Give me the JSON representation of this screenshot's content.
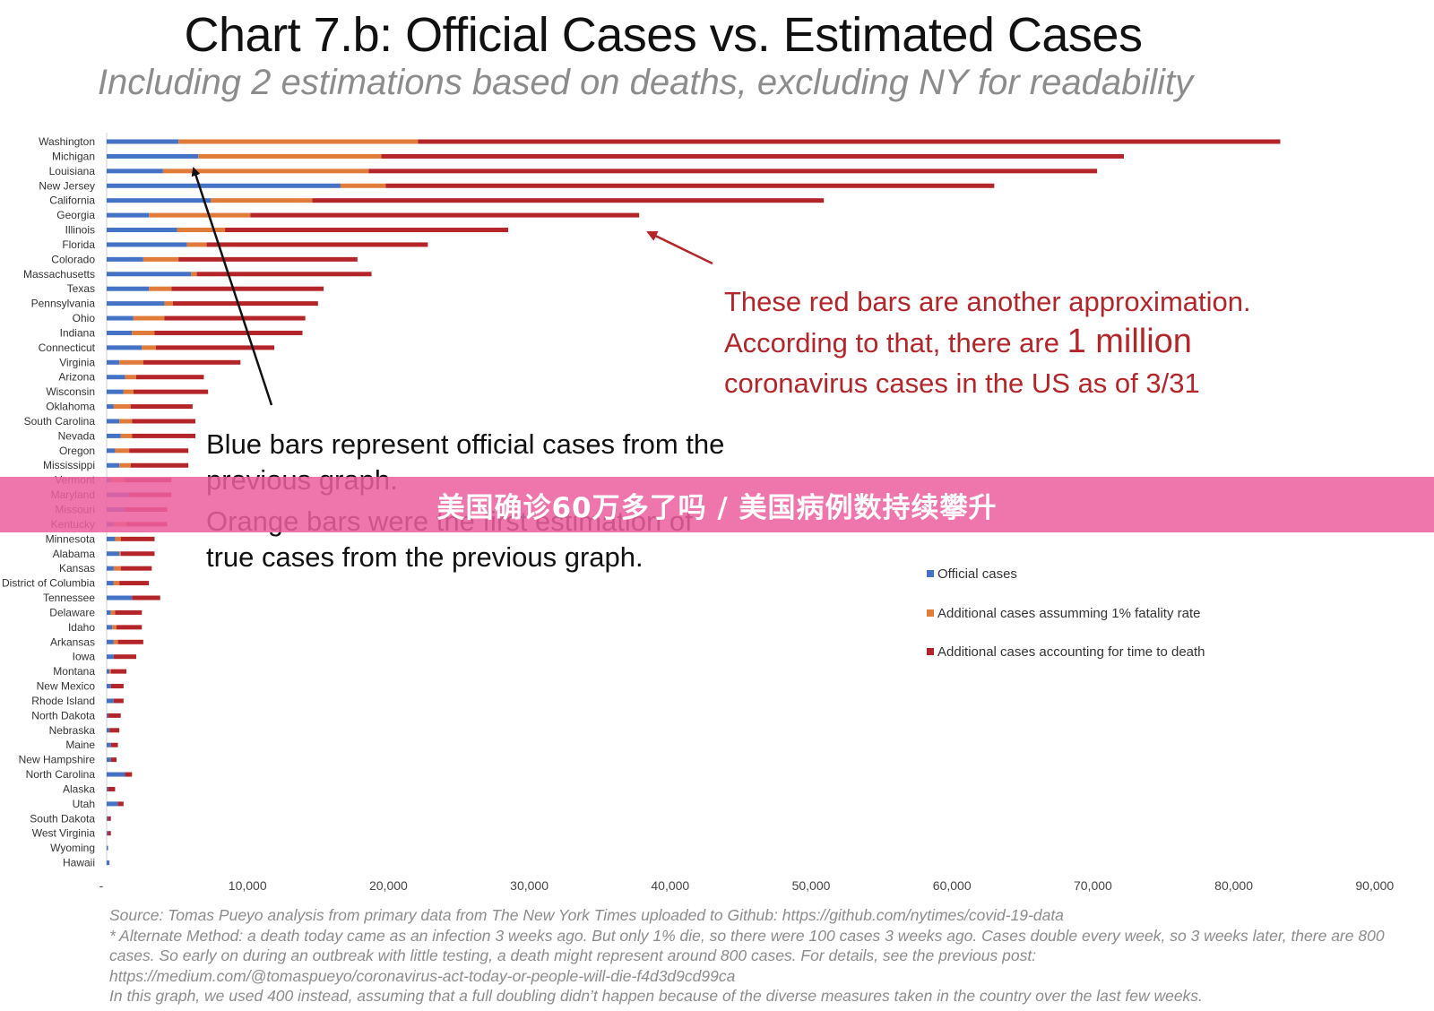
{
  "title": "Chart 7.b: Official Cases vs. Estimated Cases",
  "subtitle": "Including 2 estimations based on deaths, excluding NY for readability",
  "annotation_red": {
    "line1": "These red bars are another approximation.",
    "line2_pre": "According to that, there are ",
    "line2_big": "1 million",
    "line3": "coronavirus cases in the US as of 3/31"
  },
  "annotation_black": {
    "para1": "Blue bars represent official cases from the previous graph.",
    "para2": "Orange bars were the first estimation of true cases from the previous graph."
  },
  "notes": {
    "source": "Source: Tomas Pueyo analysis from primary data from The New York Times uploaded to Github: https://github.com/nytimes/covid-19-data",
    "method": "* Alternate Method: a death today came as an infection 3 weeks ago. But only 1% die, so there were 100 cases 3 weeks ago. Cases double every week, so 3 weeks later, there are 800 cases. So early on during an outbreak with little testing, a death might represent around 800 cases. For details, see the previous post:",
    "link": "https://medium.com/@tomaspueyo/coronavirus-act-today-or-people-will-die-f4d3d9cd99ca",
    "note": "In this graph, we used 400 instead, assuming that a full doubling didn’t happen because of the diverse measures taken in the country over the last few weeks."
  },
  "banner": "美国确诊60万多了吗 / 美国病例数持续攀升",
  "colors": {
    "official": "#4472c4",
    "assumed": "#e07b39",
    "time_to_death": "#b4252a",
    "banner": "#ec5fa0"
  },
  "chart_data": {
    "type": "bar",
    "orientation": "horizontal",
    "stacked": true,
    "xlim": [
      0,
      90000
    ],
    "x_ticks": [
      "-",
      "10,000",
      "20,000",
      "30,000",
      "40,000",
      "50,000",
      "60,000",
      "70,000",
      "80,000",
      "90,000"
    ],
    "x_tick_values": [
      0,
      10000,
      20000,
      30000,
      40000,
      50000,
      60000,
      70000,
      80000,
      90000
    ],
    "legend_position": "right",
    "categories": [
      "Washington",
      "Michigan",
      "Louisiana",
      "New Jersey",
      "California",
      "Georgia",
      "Illinois",
      "Florida",
      "Colorado",
      "Massachusetts",
      "Texas",
      "Pennsylvania",
      "Ohio",
      "Indiana",
      "Connecticut",
      "Virginia",
      "Arizona",
      "Wisconsin",
      "Oklahoma",
      "South Carolina",
      "Nevada",
      "Oregon",
      "Mississippi",
      "Vermont",
      "Maryland",
      "Missouri",
      "Kentucky",
      "Minnesota",
      "Alabama",
      "Kansas",
      "District of Columbia",
      "Tennessee",
      "Delaware",
      "Idaho",
      "Arkansas",
      "Iowa",
      "Montana",
      "New Mexico",
      "Rhode Island",
      "North Dakota",
      "Nebraska",
      "Maine",
      "New Hampshire",
      "North Carolina",
      "Alaska",
      "Utah",
      "South Dakota",
      "West Virginia",
      "Wyoming",
      "Hawaii"
    ],
    "series": [
      {
        "name": "Official cases",
        "values": [
          5100,
          6500,
          4000,
          16600,
          7400,
          3000,
          5000,
          5700,
          2600,
          6000,
          3000,
          4100,
          1900,
          1800,
          2500,
          900,
          1300,
          1200,
          500,
          900,
          1000,
          600,
          900,
          300,
          1600,
          1300,
          500,
          600,
          900,
          500,
          500,
          1800,
          300,
          400,
          500,
          500,
          200,
          300,
          500,
          100,
          200,
          300,
          300,
          1300,
          100,
          800,
          100,
          100,
          100,
          200
        ]
      },
      {
        "name": "Additional cases assumming 1% fatality rate",
        "values": [
          17000,
          13000,
          14600,
          3200,
          7200,
          7200,
          3400,
          1400,
          2500,
          400,
          1600,
          600,
          2200,
          1600,
          1000,
          1700,
          800,
          700,
          1200,
          900,
          800,
          1000,
          800,
          1000,
          0,
          0,
          900,
          400,
          100,
          500,
          400,
          0,
          300,
          300,
          300,
          0,
          100,
          0,
          0,
          0,
          0,
          0,
          0,
          0,
          0,
          0,
          0,
          0,
          0,
          0
        ]
      },
      {
        "name": "Additional cases accounting for time to death",
        "values": [
          61200,
          52700,
          51700,
          43200,
          36300,
          27600,
          20100,
          15700,
          12700,
          12400,
          10800,
          10300,
          10000,
          10500,
          8400,
          6900,
          4800,
          5300,
          4400,
          4500,
          4500,
          4200,
          4100,
          3300,
          3000,
          3000,
          2900,
          2400,
          2400,
          2200,
          2100,
          2000,
          1900,
          1800,
          1800,
          1600,
          1100,
          900,
          700,
          900,
          700,
          500,
          400,
          500,
          500,
          400,
          200,
          200,
          0,
          0
        ]
      }
    ]
  }
}
